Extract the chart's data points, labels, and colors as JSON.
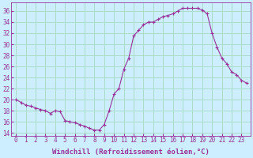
{
  "x": [
    0,
    0.5,
    1,
    1.5,
    2,
    2.5,
    3,
    3.5,
    4,
    4.5,
    5,
    5.5,
    6,
    6.5,
    7,
    7.5,
    8,
    8.5,
    9,
    9.5,
    10,
    10.5,
    11,
    11.5,
    12,
    12.5,
    13,
    13.5,
    14,
    14.5,
    15,
    15.5,
    16,
    16.5,
    17,
    17.5,
    18,
    18.5,
    19,
    19.5,
    20,
    20.5,
    21,
    21.5,
    22,
    22.5,
    23,
    23.5
  ],
  "y": [
    20.0,
    19.5,
    19.0,
    18.8,
    18.5,
    18.2,
    18.0,
    17.5,
    18.0,
    17.8,
    16.2,
    16.0,
    15.8,
    15.5,
    15.2,
    14.8,
    14.5,
    14.5,
    15.5,
    18.0,
    21.0,
    22.0,
    25.5,
    27.5,
    31.5,
    32.5,
    33.5,
    34.0,
    34.0,
    34.5,
    35.0,
    35.2,
    35.5,
    36.0,
    36.5,
    36.5,
    36.5,
    36.5,
    36.2,
    35.5,
    32.0,
    29.5,
    27.5,
    26.5,
    25.0,
    24.5,
    23.5,
    23.0
  ],
  "line_color": "#993399",
  "background_color": "#cceeff",
  "grid_color": "#aaddcc",
  "axis_color": "#993399",
  "xlabel": "Windchill (Refroidissement éolien,°C)",
  "xlabel_fontsize": 6.5,
  "ylabel_ticks": [
    14,
    16,
    18,
    20,
    22,
    24,
    26,
    28,
    30,
    32,
    34,
    36
  ],
  "ylim": [
    13.5,
    37.5
  ],
  "xlim": [
    -0.5,
    23.9
  ],
  "tick_fontsize": 5.5,
  "xticks": [
    0,
    1,
    2,
    3,
    4,
    5,
    6,
    7,
    8,
    9,
    10,
    11,
    12,
    13,
    14,
    15,
    16,
    17,
    18,
    19,
    20,
    21,
    22,
    23
  ]
}
